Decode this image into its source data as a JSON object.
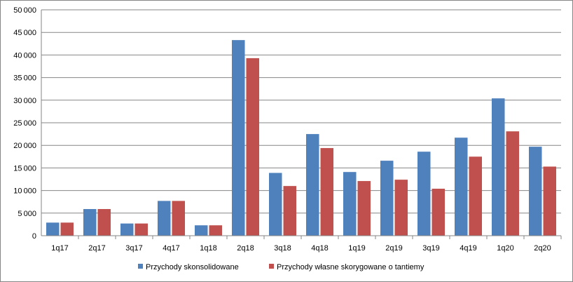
{
  "chart_data": {
    "type": "bar",
    "title": "",
    "xlabel": "",
    "ylabel": "",
    "ylim": [
      0,
      50000
    ],
    "ytick_step": 5000,
    "grid": true,
    "legend_position": "bottom",
    "categories": [
      "1q17",
      "2q17",
      "3q17",
      "4q17",
      "1q18",
      "2q18",
      "3q18",
      "4q18",
      "1q19",
      "2q19",
      "3q19",
      "4q19",
      "1q20",
      "2q20"
    ],
    "series": [
      {
        "name": "Przychody skonsolidowane",
        "color": "#4F81BD",
        "values": [
          2900,
          5900,
          2700,
          7700,
          2300,
          43300,
          13900,
          22500,
          14100,
          16600,
          18600,
          21700,
          30400,
          19700
        ]
      },
      {
        "name": "Przychody własne skorygowane o tantiemy",
        "color": "#C0504D",
        "values": [
          2900,
          5900,
          2700,
          7700,
          2300,
          39300,
          11000,
          19400,
          12100,
          12400,
          10400,
          17500,
          23100,
          15300
        ]
      }
    ]
  }
}
